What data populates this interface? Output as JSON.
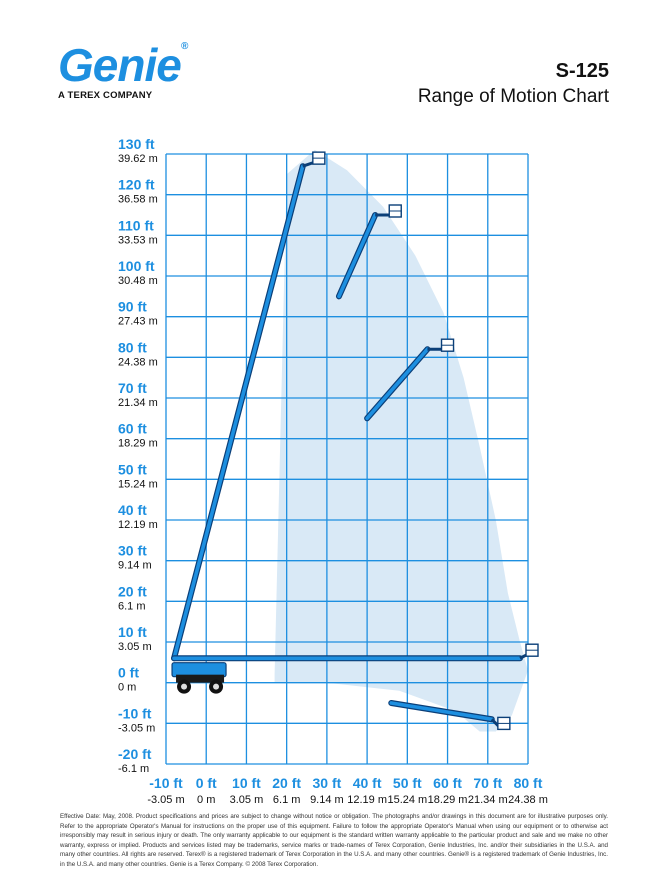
{
  "header": {
    "logo_text": "Genie",
    "logo_mark": "®",
    "logo_subtitle": "A TEREX COMPANY",
    "model": "S-125",
    "title": "Range of Motion Chart"
  },
  "colors": {
    "grid": "#1d8fe0",
    "boom": "#1d8fe0",
    "boom_outline": "#0b3f78",
    "envelope": "#d9e9f6",
    "tick_ft": "#1d8fe0"
  },
  "chart_data": {
    "type": "range-of-motion",
    "xlim": [
      -10,
      80
    ],
    "ylim": [
      -20,
      130
    ],
    "x_step_ft": 10,
    "y_step_ft": 10,
    "grid": true,
    "x_ticks": [
      {
        "ft": "-10 ft",
        "m": "-3.05 m"
      },
      {
        "ft": "0 ft",
        "m": "0 m"
      },
      {
        "ft": "10 ft",
        "m": "3.05 m"
      },
      {
        "ft": "20 ft",
        "m": "6.1 m"
      },
      {
        "ft": "30 ft",
        "m": "9.14 m"
      },
      {
        "ft": "40 ft",
        "m": "12.19 m"
      },
      {
        "ft": "50 ft",
        "m": "15.24 m"
      },
      {
        "ft": "60 ft",
        "m": "18.29 m"
      },
      {
        "ft": "70 ft",
        "m": "21.34 m"
      },
      {
        "ft": "80 ft",
        "m": "24.38 m"
      }
    ],
    "y_ticks": [
      {
        "ft": "130 ft",
        "m": "39.62 m"
      },
      {
        "ft": "120 ft",
        "m": "36.58 m"
      },
      {
        "ft": "110 ft",
        "m": "33.53 m"
      },
      {
        "ft": "100 ft",
        "m": "30.48 m"
      },
      {
        "ft": "90 ft",
        "m": "27.43 m"
      },
      {
        "ft": "80 ft",
        "m": "24.38 m"
      },
      {
        "ft": "70 ft",
        "m": "21.34 m"
      },
      {
        "ft": "60 ft",
        "m": "18.29 m"
      },
      {
        "ft": "50 ft",
        "m": "15.24 m"
      },
      {
        "ft": "40 ft",
        "m": "12.19 m"
      },
      {
        "ft": "30 ft",
        "m": "9.14 m"
      },
      {
        "ft": "20 ft",
        "m": "6.1 m"
      },
      {
        "ft": "10 ft",
        "m": "3.05 m"
      },
      {
        "ft": "0 ft",
        "m": "0 m"
      },
      {
        "ft": "-10 ft",
        "m": "-3.05 m"
      },
      {
        "ft": "-20 ft",
        "m": "-6.1 m"
      }
    ],
    "envelope": [
      [
        17,
        2
      ],
      [
        20,
        125
      ],
      [
        27,
        131
      ],
      [
        35,
        126
      ],
      [
        44,
        117
      ],
      [
        52,
        105
      ],
      [
        59,
        91
      ],
      [
        64,
        75
      ],
      [
        68,
        58
      ],
      [
        72,
        40
      ],
      [
        75,
        22
      ],
      [
        78,
        10
      ],
      [
        80,
        3
      ],
      [
        76,
        -8
      ],
      [
        72,
        -12
      ],
      [
        68,
        -12
      ],
      [
        62,
        -7
      ],
      [
        48,
        -2
      ],
      [
        30,
        0
      ],
      [
        17,
        0
      ]
    ],
    "boom_positions": [
      {
        "name": "full-vertical",
        "points": [
          [
            -8,
            6
          ],
          [
            24,
            127
          ]
        ],
        "jib": [
          [
            24,
            127
          ],
          [
            27,
            128
          ]
        ]
      },
      {
        "name": "horizontal",
        "points": [
          [
            -8,
            6
          ],
          [
            78,
            6
          ]
        ],
        "jib": [
          [
            78,
            6
          ],
          [
            80,
            7
          ]
        ]
      },
      {
        "name": "below-grade",
        "points": [
          [
            46,
            -5
          ],
          [
            71,
            -9
          ]
        ],
        "jib": [
          [
            71,
            -9
          ],
          [
            73,
            -11
          ]
        ]
      },
      {
        "name": "upper-mid",
        "points": [
          [
            33,
            95
          ],
          [
            42,
            115
          ]
        ],
        "jib": [
          [
            42,
            115
          ],
          [
            46,
            115
          ]
        ]
      },
      {
        "name": "mid",
        "points": [
          [
            40,
            65
          ],
          [
            55,
            82
          ]
        ],
        "jib": [
          [
            55,
            82
          ],
          [
            59,
            82
          ]
        ]
      }
    ]
  },
  "footer": {
    "text": "Effective Date: May, 2008. Product specifications and prices are subject to change without notice or obligation. The photographs and/or drawings in this document are for illustrative purposes only. Refer to the appropriate Operator's Manual for instructions on the proper use of this equipment. Failure to follow the appropriate Operator's Manual when using our equipment or to otherwise act irresponsibly may result in serious injury or death. The only warranty applicable to our equipment is the standard written warranty applicable to the particular product and sale and we make no other warranty, express or implied. Products and services listed may be trademarks, service marks or trade-names of Terex Corporation, Genie Industries, Inc. and/or their subsidiaries in the U.S.A. and many other countries. All rights are reserved. Terex® is a registered trademark of Terex Corporation in the U.S.A. and many other countries. Genie® is a registered trademark of Genie Industries, Inc. in the U.S.A. and many other countries. Genie is a Terex Company. © 2008 Terex Corporation."
  }
}
